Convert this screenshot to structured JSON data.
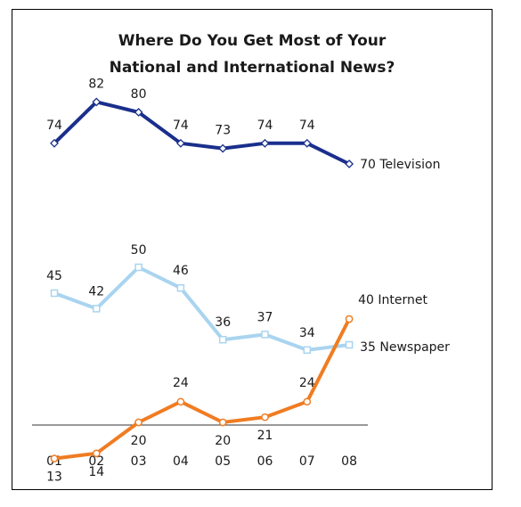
{
  "chart_data": {
    "type": "line",
    "title": [
      "Where Do You Get Most of Your",
      "National and International News?"
    ],
    "categories": [
      "01",
      "02",
      "03",
      "04",
      "05",
      "06",
      "07",
      "08"
    ],
    "series": [
      {
        "name": "Television",
        "end_label": "70 Television",
        "values": [
          74,
          82,
          80,
          74,
          73,
          74,
          74,
          70
        ],
        "point_labels": [
          "74",
          "82",
          "80",
          "74",
          "73",
          "74",
          "74"
        ],
        "color": "#1a2f8c",
        "marker": "diamond"
      },
      {
        "name": "Newspaper",
        "end_label": "35 Newspaper",
        "values": [
          45,
          42,
          50,
          46,
          36,
          37,
          34,
          35
        ],
        "point_labels": [
          "45",
          "42",
          "50",
          "46",
          "36",
          "37",
          "34"
        ],
        "color": "#a9d4f0",
        "marker": "square"
      },
      {
        "name": "Internet",
        "end_label": "40 Internet",
        "values": [
          13,
          14,
          20,
          24,
          20,
          21,
          24,
          40
        ],
        "point_labels": [
          "13",
          "14",
          "20",
          "24",
          "20",
          "21",
          "24"
        ],
        "color": "#f07c22",
        "marker": "circle"
      }
    ]
  }
}
